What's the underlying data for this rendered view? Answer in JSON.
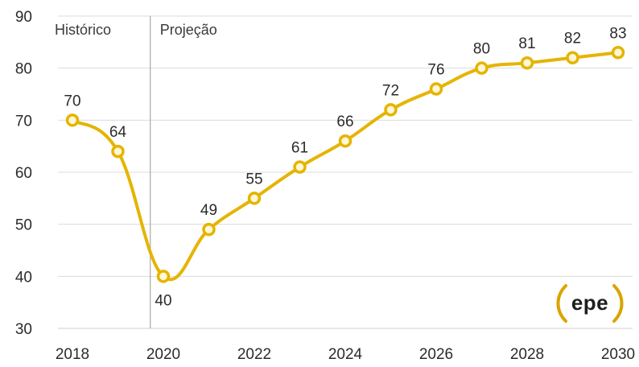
{
  "chart_data": {
    "type": "line",
    "x": [
      2018,
      2019,
      2020,
      2021,
      2022,
      2023,
      2024,
      2025,
      2026,
      2027,
      2028,
      2029,
      2030
    ],
    "values": [
      70,
      64,
      40,
      49,
      55,
      61,
      66,
      72,
      76,
      80,
      81,
      82,
      83
    ],
    "data_labels": [
      "70",
      "64",
      "40",
      "49",
      "55",
      "61",
      "66",
      "72",
      "76",
      "80",
      "81",
      "82",
      "83"
    ],
    "x_tick_labels": [
      "2018",
      "2020",
      "2022",
      "2024",
      "2026",
      "2028",
      "2030"
    ],
    "y_tick_labels": [
      "30",
      "40",
      "50",
      "60",
      "70",
      "80",
      "90"
    ],
    "ylim": [
      30,
      90
    ],
    "xlim": [
      2018,
      2030
    ],
    "grid": true,
    "line_color": "#e5b400",
    "marker_fill": "#fff7d6",
    "annotations": {
      "historic_label": "Histórico",
      "projection_label": "Projeção",
      "divider_between": [
        2019,
        2020
      ]
    }
  },
  "logo": {
    "text": "epe",
    "icon": "epe-logo-icon",
    "color": "#d9a400"
  }
}
